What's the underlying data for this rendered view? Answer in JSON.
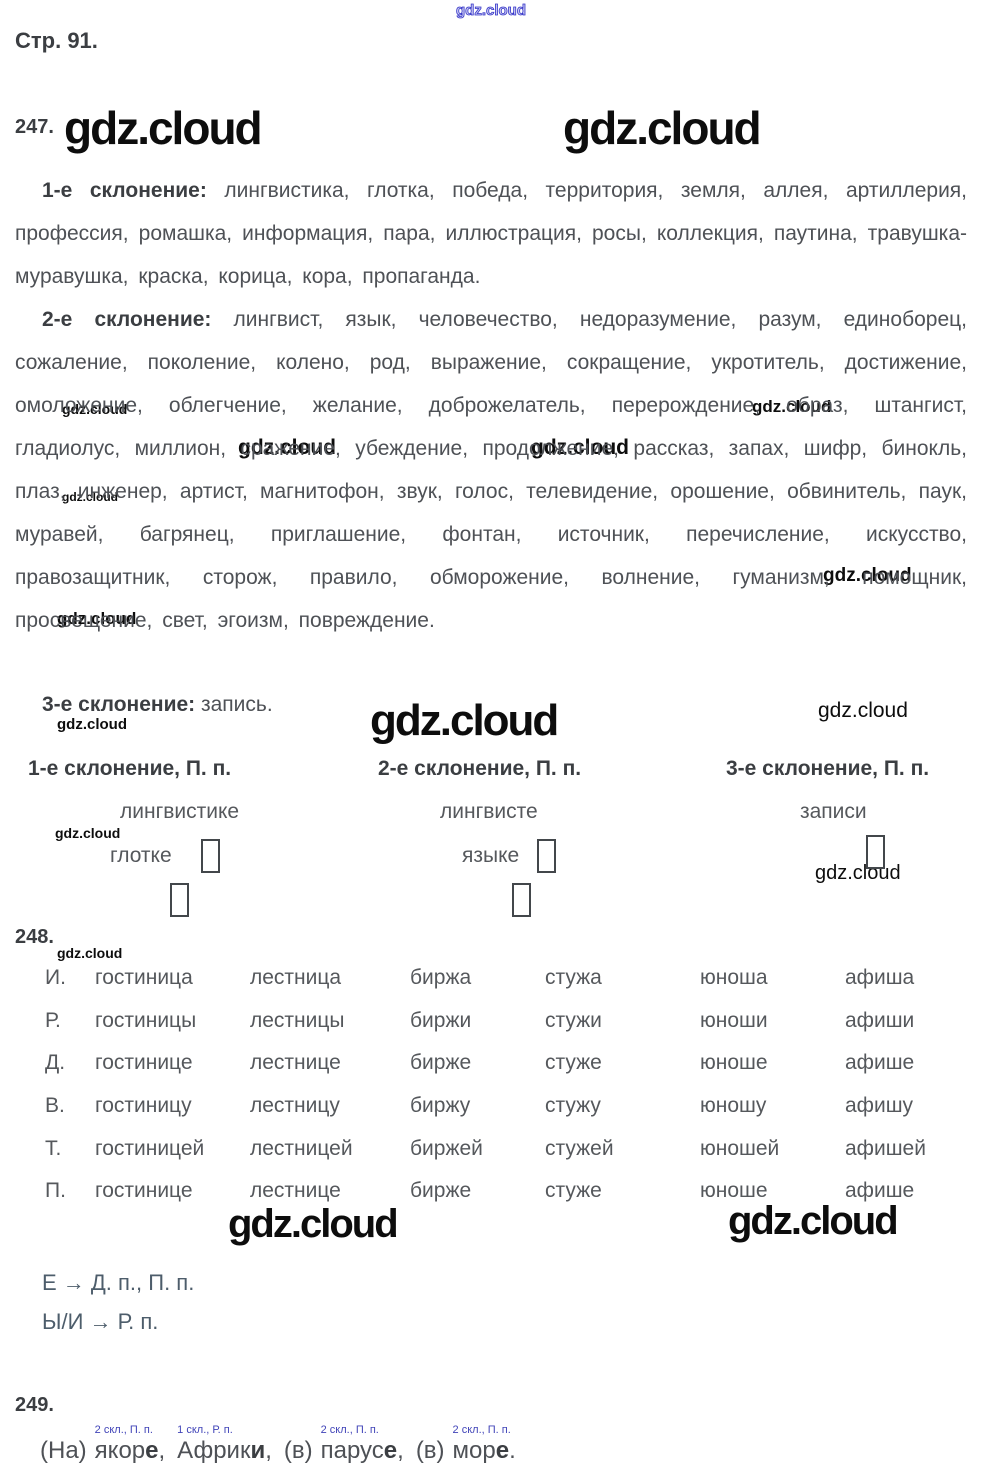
{
  "watermark": "gdz.cloud",
  "page_label": "Стр. 91.",
  "ex247": {
    "number": "247.",
    "p1_label": "1-е склонение:",
    "p1_text": "лингвистика, глотка, победа, территория, земля, аллея, артиллерия, профессия, ромашка, информация, пара, иллюстрация, росы, коллекция, паутина, травушка-муравушка, краска, корица, кора, пропаганда.",
    "p2_label": "2-е склонение:",
    "p2_text": "лингвист, язык, человечество, недоразумение, разум, единоборец, сожаление, поколение, колено, род, выражение, сокращение, укротитель, достижение, омоложение, облегчение, желание, доброжелатель, перерождение, образ, штангист, гладиолус, миллион, сражение, убеждение, продолжение, рассказ, запах, шифр, бинокль, плаз, инженер, артист, магнитофон, звук, голос, телевидение, орошение, обвинитель, паук, муравей, багрянец, приглашение, фонтан, источник, перечисление, искусство, правозащитник, сторож, правило, обморожение, волнение, гуманизм, помощник, просвещение, свет, эгоизм, повреждение.",
    "p3_label": "3-е склонение:",
    "p3_text": "запись.",
    "table": {
      "headers": [
        "1-е склонение, П. п.",
        "2-е склонение, П. п.",
        "3-е склонение, П. п."
      ],
      "row1": [
        "лингвистике",
        "лингвисте",
        "записи"
      ],
      "row2": [
        "глотке",
        "языке"
      ]
    }
  },
  "ex248": {
    "number": "248.",
    "rows": [
      [
        "И.",
        "гостиница",
        "лестница",
        "биржа",
        "стужа",
        "юноша",
        "афиша"
      ],
      [
        "Р.",
        "гостиницы",
        "лестницы",
        "биржи",
        "стужи",
        "юноши",
        "афиши"
      ],
      [
        "Д.",
        "гостинице",
        "лестнице",
        "бирже",
        "стуже",
        "юноше",
        "афише"
      ],
      [
        "В.",
        "гостиницу",
        "лестницу",
        "биржу",
        "стужу",
        "юношу",
        "афишу"
      ],
      [
        "Т.",
        "гостиницей",
        "лестницей",
        "биржей",
        "стужей",
        "юношей",
        "афишей"
      ],
      [
        "П.",
        "гостинице",
        "лестнице",
        "бирже",
        "стуже",
        "юноше",
        "афише"
      ]
    ],
    "note1": "Е → Д. п., П. п.",
    "note2": "Ы/И → Р. п."
  },
  "ex249": {
    "number": "249.",
    "words": [
      {
        "prefix": "(На)",
        "stem": "якор",
        "ending": "е",
        "sep": ",",
        "annotation": "2 скл., П. п."
      },
      {
        "prefix": "",
        "stem": "Африк",
        "ending": "и",
        "sep": ",",
        "annotation": "1 скл., Р. п."
      },
      {
        "prefix": "(в)",
        "stem": "парус",
        "ending": "е",
        "sep": ",",
        "annotation": "2 скл., П. п."
      },
      {
        "prefix": "(в)",
        "stem": "мор",
        "ending": "е",
        "sep": ".",
        "annotation": "2 скл., П. п."
      }
    ]
  }
}
